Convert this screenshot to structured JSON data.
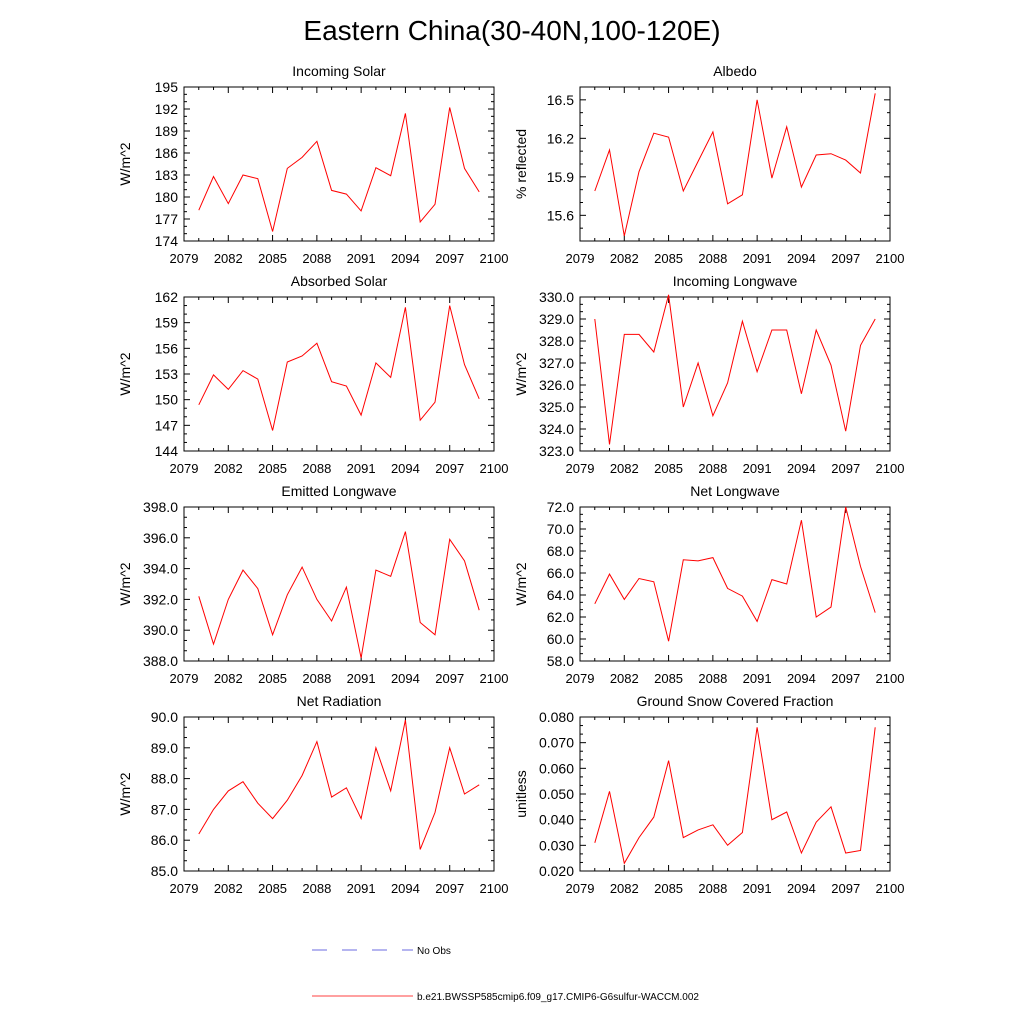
{
  "figure": {
    "title": "Eastern China(30-40N,100-120E)",
    "legend": [
      {
        "label": "No Obs",
        "color": "#3b3bd6",
        "style": "dashed"
      },
      {
        "label": "b.e21.BWSSP585cmip6.f09_g17.CMIP6-G6sulfur-WACCM.002",
        "color": "#ff0000",
        "style": "solid"
      }
    ]
  },
  "chart_data": [
    {
      "type": "line",
      "title": "Incoming Solar",
      "xlabel": "",
      "ylabel": "W/m^2",
      "xlim": [
        2079,
        2100
      ],
      "ylim": [
        174,
        195
      ],
      "xticks": [
        "2079",
        "2082",
        "2085",
        "2088",
        "2091",
        "2094",
        "2097",
        "2100"
      ],
      "yticks": [
        "174",
        "177",
        "180",
        "183",
        "186",
        "189",
        "192",
        "195"
      ],
      "x": [
        2080,
        2081,
        2082,
        2083,
        2084,
        2085,
        2086,
        2087,
        2088,
        2089,
        2090,
        2091,
        2092,
        2093,
        2094,
        2095,
        2096,
        2097,
        2098,
        2099
      ],
      "series": [
        {
          "color": "#ff0000",
          "values": [
            178.2,
            182.8,
            179.1,
            183.0,
            182.5,
            175.3,
            183.9,
            185.4,
            187.6,
            180.9,
            180.4,
            178.1,
            184.0,
            182.9,
            191.4,
            176.6,
            179.0,
            192.2,
            183.9,
            180.7
          ]
        }
      ]
    },
    {
      "type": "line",
      "title": "Albedo",
      "xlabel": "",
      "ylabel": "% reflected",
      "xlim": [
        2079,
        2100
      ],
      "ylim": [
        15.4,
        16.6
      ],
      "xticks": [
        "2079",
        "2082",
        "2085",
        "2088",
        "2091",
        "2094",
        "2097",
        "2100"
      ],
      "yticks": [
        "15.6",
        "15.9",
        "16.2",
        "16.5"
      ],
      "x": [
        2080,
        2081,
        2082,
        2083,
        2084,
        2085,
        2086,
        2087,
        2088,
        2089,
        2090,
        2091,
        2092,
        2093,
        2094,
        2095,
        2096,
        2097,
        2098,
        2099
      ],
      "series": [
        {
          "color": "#ff0000",
          "values": [
            15.79,
            16.11,
            15.44,
            15.94,
            16.24,
            16.21,
            15.79,
            16.02,
            16.25,
            15.69,
            15.76,
            16.5,
            15.89,
            16.29,
            15.82,
            16.07,
            16.08,
            16.03,
            15.93,
            16.55
          ]
        }
      ]
    },
    {
      "type": "line",
      "title": "Absorbed Solar",
      "xlabel": "",
      "ylabel": "W/m^2",
      "xlim": [
        2079,
        2100
      ],
      "ylim": [
        144,
        162
      ],
      "xticks": [
        "2079",
        "2082",
        "2085",
        "2088",
        "2091",
        "2094",
        "2097",
        "2100"
      ],
      "yticks": [
        "144",
        "147",
        "150",
        "153",
        "156",
        "159",
        "162"
      ],
      "x": [
        2080,
        2081,
        2082,
        2083,
        2084,
        2085,
        2086,
        2087,
        2088,
        2089,
        2090,
        2091,
        2092,
        2093,
        2094,
        2095,
        2096,
        2097,
        2098,
        2099
      ],
      "series": [
        {
          "color": "#ff0000",
          "values": [
            149.4,
            152.9,
            151.2,
            153.4,
            152.4,
            146.4,
            154.4,
            155.1,
            156.6,
            152.1,
            151.6,
            148.2,
            154.3,
            152.6,
            160.8,
            147.6,
            149.7,
            161.0,
            154.1,
            150.1
          ]
        }
      ]
    },
    {
      "type": "line",
      "title": "Incoming Longwave",
      "xlabel": "",
      "ylabel": "W/m^2",
      "xlim": [
        2079,
        2100
      ],
      "ylim": [
        323.0,
        330.0
      ],
      "xticks": [
        "2079",
        "2082",
        "2085",
        "2088",
        "2091",
        "2094",
        "2097",
        "2100"
      ],
      "yticks": [
        "323.0",
        "324.0",
        "325.0",
        "326.0",
        "327.0",
        "328.0",
        "329.0",
        "330.0"
      ],
      "x": [
        2080,
        2081,
        2082,
        2083,
        2084,
        2085,
        2086,
        2087,
        2088,
        2089,
        2090,
        2091,
        2092,
        2093,
        2094,
        2095,
        2096,
        2097,
        2098,
        2099
      ],
      "series": [
        {
          "color": "#ff0000",
          "values": [
            329.0,
            323.3,
            328.3,
            328.3,
            327.5,
            330.1,
            325.0,
            327.0,
            324.6,
            326.1,
            328.9,
            326.6,
            328.5,
            328.5,
            325.6,
            328.5,
            326.9,
            323.9,
            327.8,
            329.0
          ]
        }
      ]
    },
    {
      "type": "line",
      "title": "Emitted Longwave",
      "xlabel": "",
      "ylabel": "W/m^2",
      "xlim": [
        2079,
        2100
      ],
      "ylim": [
        388.0,
        398.0
      ],
      "xticks": [
        "2079",
        "2082",
        "2085",
        "2088",
        "2091",
        "2094",
        "2097",
        "2100"
      ],
      "yticks": [
        "388.0",
        "390.0",
        "392.0",
        "394.0",
        "396.0",
        "398.0"
      ],
      "x": [
        2080,
        2081,
        2082,
        2083,
        2084,
        2085,
        2086,
        2087,
        2088,
        2089,
        2090,
        2091,
        2092,
        2093,
        2094,
        2095,
        2096,
        2097,
        2098,
        2099
      ],
      "series": [
        {
          "color": "#ff0000",
          "values": [
            392.2,
            389.1,
            392.0,
            393.9,
            392.7,
            389.7,
            392.3,
            394.1,
            392.0,
            390.6,
            392.8,
            388.2,
            393.9,
            393.5,
            396.4,
            390.5,
            389.7,
            395.9,
            394.5,
            391.3
          ]
        }
      ]
    },
    {
      "type": "line",
      "title": "Net Longwave",
      "xlabel": "",
      "ylabel": "W/m^2",
      "xlim": [
        2079,
        2100
      ],
      "ylim": [
        58.0,
        72.0
      ],
      "xticks": [
        "2079",
        "2082",
        "2085",
        "2088",
        "2091",
        "2094",
        "2097",
        "2100"
      ],
      "yticks": [
        "58.0",
        "60.0",
        "62.0",
        "64.0",
        "66.0",
        "68.0",
        "70.0",
        "72.0"
      ],
      "x": [
        2080,
        2081,
        2082,
        2083,
        2084,
        2085,
        2086,
        2087,
        2088,
        2089,
        2090,
        2091,
        2092,
        2093,
        2094,
        2095,
        2096,
        2097,
        2098,
        2099
      ],
      "series": [
        {
          "color": "#ff0000",
          "values": [
            63.2,
            65.9,
            63.6,
            65.5,
            65.2,
            59.8,
            67.2,
            67.1,
            67.4,
            64.6,
            63.9,
            61.6,
            65.4,
            65.0,
            70.8,
            62.0,
            62.9,
            72.0,
            66.6,
            62.4
          ]
        }
      ]
    },
    {
      "type": "line",
      "title": "Net Radiation",
      "xlabel": "",
      "ylabel": "W/m^2",
      "xlim": [
        2079,
        2100
      ],
      "ylim": [
        85.0,
        90.0
      ],
      "xticks": [
        "2079",
        "2082",
        "2085",
        "2088",
        "2091",
        "2094",
        "2097",
        "2100"
      ],
      "yticks": [
        "85.0",
        "86.0",
        "87.0",
        "88.0",
        "89.0",
        "90.0"
      ],
      "x": [
        2080,
        2081,
        2082,
        2083,
        2084,
        2085,
        2086,
        2087,
        2088,
        2089,
        2090,
        2091,
        2092,
        2093,
        2094,
        2095,
        2096,
        2097,
        2098,
        2099
      ],
      "series": [
        {
          "color": "#ff0000",
          "values": [
            86.2,
            87.0,
            87.6,
            87.9,
            87.2,
            86.7,
            87.3,
            88.1,
            89.2,
            87.4,
            87.7,
            86.7,
            89.0,
            87.6,
            89.9,
            85.7,
            86.9,
            89.0,
            87.5,
            87.8
          ]
        }
      ]
    },
    {
      "type": "line",
      "title": "Ground Snow Covered Fraction",
      "xlabel": "",
      "ylabel": "unitless",
      "xlim": [
        2079,
        2100
      ],
      "ylim": [
        0.02,
        0.08
      ],
      "xticks": [
        "2079",
        "2082",
        "2085",
        "2088",
        "2091",
        "2094",
        "2097",
        "2100"
      ],
      "yticks": [
        "0.020",
        "0.030",
        "0.040",
        "0.050",
        "0.060",
        "0.070",
        "0.080"
      ],
      "x": [
        2080,
        2081,
        2082,
        2083,
        2084,
        2085,
        2086,
        2087,
        2088,
        2089,
        2090,
        2091,
        2092,
        2093,
        2094,
        2095,
        2096,
        2097,
        2098,
        2099
      ],
      "series": [
        {
          "color": "#ff0000",
          "values": [
            0.031,
            0.051,
            0.023,
            0.033,
            0.041,
            0.063,
            0.033,
            0.036,
            0.038,
            0.03,
            0.035,
            0.076,
            0.04,
            0.043,
            0.027,
            0.039,
            0.045,
            0.027,
            0.028,
            0.076
          ]
        }
      ]
    }
  ]
}
